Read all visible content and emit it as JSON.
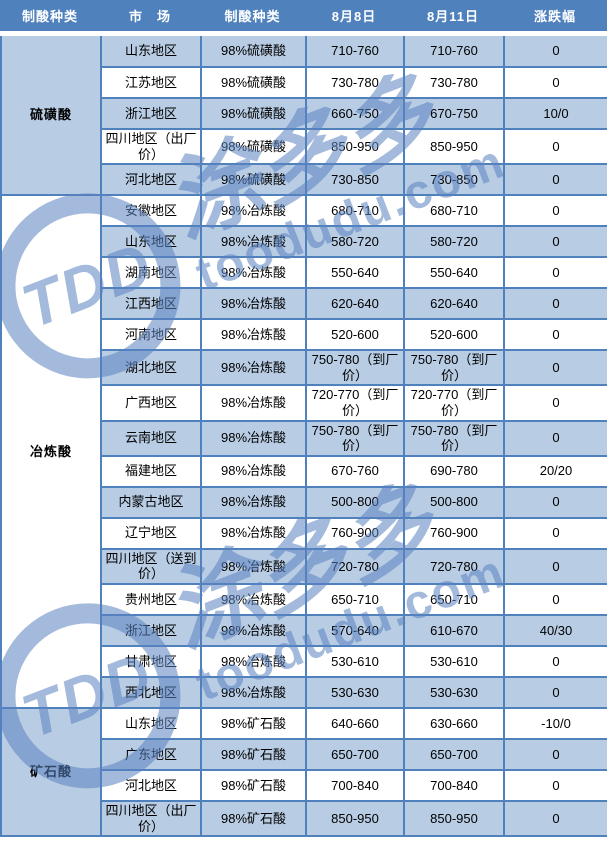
{
  "table": {
    "headers": [
      "制酸种类",
      "市　场",
      "制酸种类",
      "8月8日",
      "8月11日",
      "涨跌幅"
    ],
    "groups": [
      {
        "label": "硫磺酸",
        "rows": [
          {
            "market": "山东地区",
            "type": "98%硫磺酸",
            "aug8": "710-760",
            "aug11": "710-760",
            "change": "0"
          },
          {
            "market": "江苏地区",
            "type": "98%硫磺酸",
            "aug8": "730-780",
            "aug11": "730-780",
            "change": "0"
          },
          {
            "market": "浙江地区",
            "type": "98%硫磺酸",
            "aug8": "660-750",
            "aug11": "670-750",
            "change": "10/0"
          },
          {
            "market": "四川地区（出厂价）",
            "type": "98%硫磺酸",
            "aug8": "850-950",
            "aug11": "850-950",
            "change": "0"
          },
          {
            "market": "河北地区",
            "type": "98%硫磺酸",
            "aug8": "730-850",
            "aug11": "730-850",
            "change": "0"
          }
        ]
      },
      {
        "label": "冶炼酸",
        "rows": [
          {
            "market": "安徽地区",
            "type": "98%冶炼酸",
            "aug8": "680-710",
            "aug11": "680-710",
            "change": "0"
          },
          {
            "market": "山东地区",
            "type": "98%冶炼酸",
            "aug8": "580-720",
            "aug11": "580-720",
            "change": "0"
          },
          {
            "market": "湖南地区",
            "type": "98%冶炼酸",
            "aug8": "550-640",
            "aug11": "550-640",
            "change": "0"
          },
          {
            "market": "江西地区",
            "type": "98%冶炼酸",
            "aug8": "620-640",
            "aug11": "620-640",
            "change": "0"
          },
          {
            "market": "河南地区",
            "type": "98%冶炼酸",
            "aug8": "520-600",
            "aug11": "520-600",
            "change": "0"
          },
          {
            "market": "湖北地区",
            "type": "98%冶炼酸",
            "aug8": "750-780（到厂价）",
            "aug11": "750-780（到厂价）",
            "change": "0"
          },
          {
            "market": "广西地区",
            "type": "98%冶炼酸",
            "aug8": "720-770（到厂价）",
            "aug11": "720-770（到厂价）",
            "change": "0"
          },
          {
            "market": "云南地区",
            "type": "98%冶炼酸",
            "aug8": "750-780（到厂价）",
            "aug11": "750-780（到厂价）",
            "change": "0"
          },
          {
            "market": "福建地区",
            "type": "98%冶炼酸",
            "aug8": "670-760",
            "aug11": "690-780",
            "change": "20/20"
          },
          {
            "market": "内蒙古地区",
            "type": "98%冶炼酸",
            "aug8": "500-800",
            "aug11": "500-800",
            "change": "0"
          },
          {
            "market": "辽宁地区",
            "type": "98%冶炼酸",
            "aug8": "760-900",
            "aug11": "760-900",
            "change": "0"
          },
          {
            "market": "四川地区（送到价）",
            "type": "98%冶炼酸",
            "aug8": "720-780",
            "aug11": "720-780",
            "change": "0"
          },
          {
            "market": "贵州地区",
            "type": "98%冶炼酸",
            "aug8": "650-710",
            "aug11": "650-710",
            "change": "0"
          },
          {
            "market": "浙江地区",
            "type": "98%冶炼酸",
            "aug8": "570-640",
            "aug11": "610-670",
            "change": "40/30"
          },
          {
            "market": "甘肃地区",
            "type": "98%冶炼酸",
            "aug8": "530-610",
            "aug11": "530-610",
            "change": "0"
          },
          {
            "market": "西北地区",
            "type": "98%冶炼酸",
            "aug8": "530-630",
            "aug11": "530-630",
            "change": "0"
          }
        ]
      },
      {
        "label": "矿石酸",
        "rows": [
          {
            "market": "山东地区",
            "type": "98%矿石酸",
            "aug8": "640-660",
            "aug11": "630-660",
            "change": "-10/0"
          },
          {
            "market": "广东地区",
            "type": "98%矿石酸",
            "aug8": "650-700",
            "aug11": "650-700",
            "change": "0"
          },
          {
            "market": "河北地区",
            "type": "98%矿石酸",
            "aug8": "700-840",
            "aug11": "700-840",
            "change": "0"
          },
          {
            "market": "四川地区（出厂价）",
            "type": "98%矿石酸",
            "aug8": "850-950",
            "aug11": "850-950",
            "change": "0"
          }
        ]
      }
    ]
  },
  "watermark": {
    "logo_text": "TDD",
    "brand_text": "涂多多",
    "domain_text": "toodudu.com"
  },
  "colors": {
    "header_bg": "#4f81bd",
    "row_shaded_bg": "#b8cce4",
    "row_plain_bg": "#ffffff",
    "border": "#4f81bd",
    "header_text": "#ffffff",
    "body_text": "#000000",
    "watermark": "#5b83c0"
  }
}
